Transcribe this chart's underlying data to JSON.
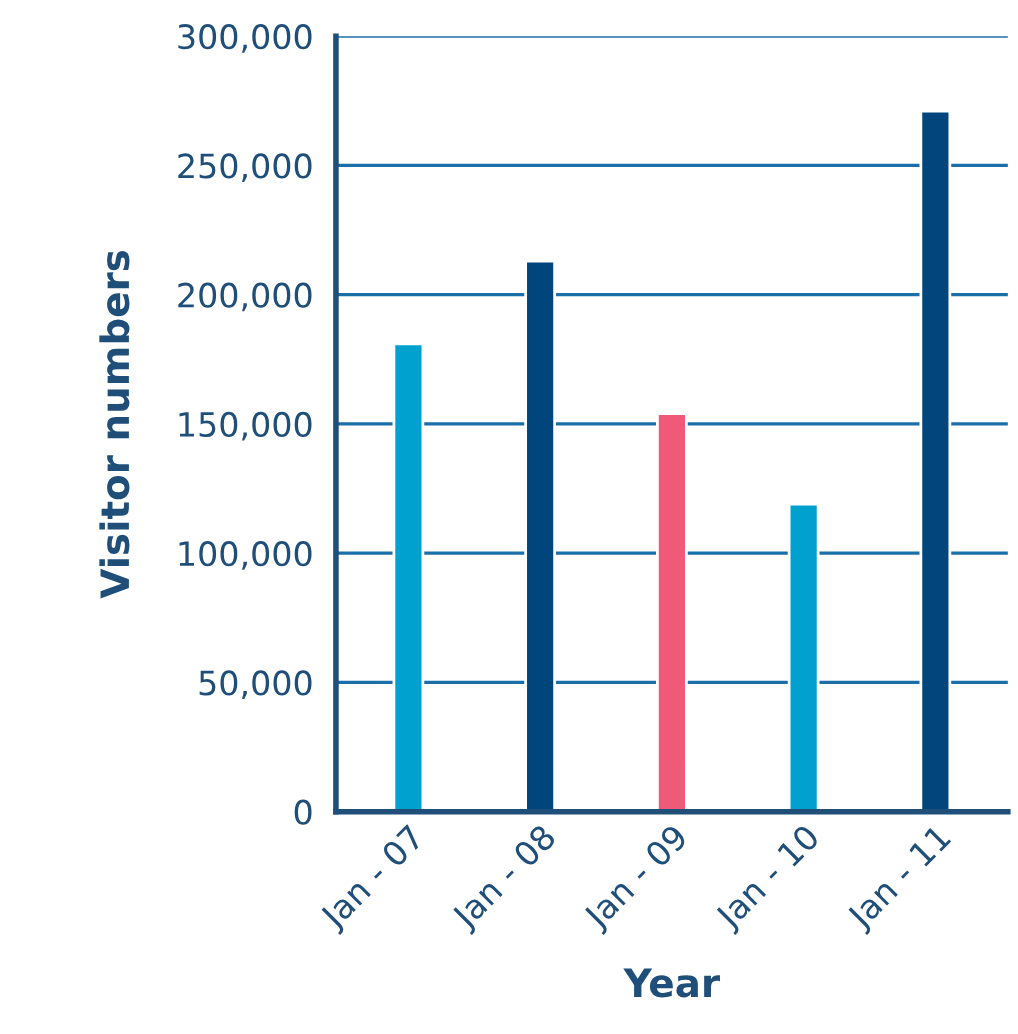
{
  "chart_data": {
    "type": "bar",
    "xlabel": "Year",
    "ylabel": "Visitor numbers",
    "categories": [
      "Jan - 07",
      "Jan - 08",
      "Jan - 09",
      "Jan - 10",
      "Jan - 11"
    ],
    "values": [
      181000,
      213000,
      154000,
      119000,
      271000
    ],
    "colors": [
      "#00a0cf",
      "#00457c",
      "#ee5a78",
      "#00a0cf",
      "#00457c"
    ],
    "ylim": [
      0,
      300000
    ],
    "yticks": [
      {
        "value": 0,
        "label": "0"
      },
      {
        "value": 50000,
        "label": "50,000"
      },
      {
        "value": 100000,
        "label": "100,000"
      },
      {
        "value": 150000,
        "label": "150,000"
      },
      {
        "value": 200000,
        "label": "200,000"
      },
      {
        "value": 250000,
        "label": "250,000"
      },
      {
        "value": 300000,
        "label": "300,000"
      }
    ],
    "grid": "y"
  }
}
